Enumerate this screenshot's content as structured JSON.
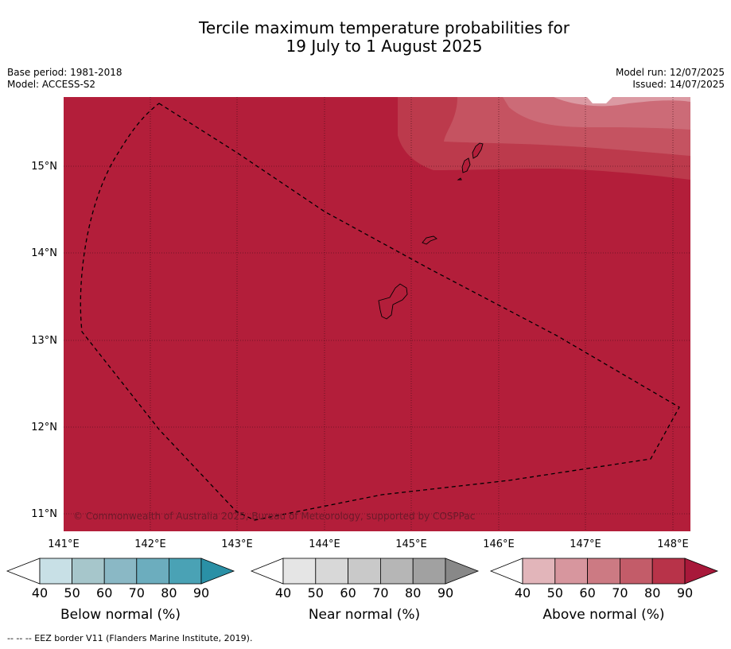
{
  "title": {
    "line1": "Tercile maximum temperature probabilities for",
    "line2": "19 July to 1 August 2025"
  },
  "meta": {
    "base_period": "Base period: 1981-2018",
    "model": "Model: ACCESS-S2",
    "model_run": "Model run: 12/07/2025",
    "issued": "Issued: 14/07/2025"
  },
  "map": {
    "region_fill_color": "#b31e3a",
    "copyright": "© Commonwealth of Australia 2025, Bureau of Meteorology, supported by COSPPac",
    "lat_labels": [
      "15°N",
      "14°N",
      "13°N",
      "12°N",
      "11°N"
    ],
    "lon_labels": [
      "141°E",
      "142°E",
      "143°E",
      "144°E",
      "145°E",
      "146°E",
      "147°E",
      "148°E"
    ],
    "outline": "eez-border-dashed",
    "features": [
      "guam-island",
      "rota-island",
      "tinian-island",
      "saipan-island"
    ]
  },
  "colorbars": [
    {
      "title": "Below normal (%)",
      "ticks": [
        "40",
        "50",
        "60",
        "70",
        "80",
        "90"
      ],
      "colors": [
        "#ffffff",
        "#c8e0e6",
        "#a6c6cb",
        "#8ab8c5",
        "#6cadbe",
        "#4aa2b5",
        "#2a90a6"
      ]
    },
    {
      "title": "Near normal (%)",
      "ticks": [
        "40",
        "50",
        "60",
        "70",
        "80",
        "90"
      ],
      "colors": [
        "#ffffff",
        "#e5e5e5",
        "#d8d8d8",
        "#c9c9c9",
        "#b6b6b6",
        "#a1a1a1",
        "#888888"
      ]
    },
    {
      "title": "Above normal (%)",
      "ticks": [
        "40",
        "50",
        "60",
        "70",
        "80",
        "90"
      ],
      "colors": [
        "#ffffff",
        "#e2b5ba",
        "#d7969e",
        "#cc7a83",
        "#c35c69",
        "#b83349",
        "#a8183a"
      ]
    }
  ],
  "footnote": "--  --  -- EEZ border V11 (Flanders Marine Institute, 2019)."
}
